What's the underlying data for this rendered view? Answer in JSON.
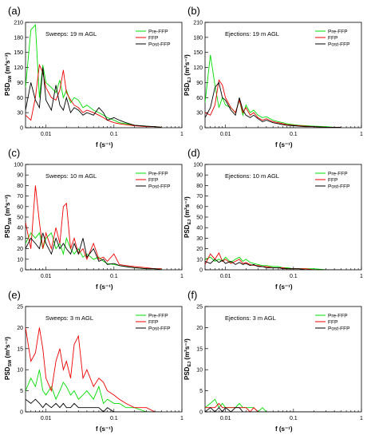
{
  "figure": {
    "panel_letters": [
      "(a)",
      "(b)",
      "(c)",
      "(d)",
      "(e)",
      "(f)"
    ],
    "x_ticks": [
      "0.01",
      "0.1",
      "1"
    ],
    "xlabel": "f (s⁻¹)",
    "colors": {
      "Pre-FFP": "#00dd00",
      "FFP": "#ee0000",
      "Post-FFP": "#000000"
    }
  },
  "chart_data": [
    {
      "type": "line",
      "panel": "(a)",
      "title": "Sweeps: 19 m AGL",
      "ylabel": "PSD",
      "ylabel_sub": "SW",
      "ylabel_unit": " (m²s⁻³)",
      "xlabel": "f (s⁻¹)",
      "x_scale": "log",
      "xlim": [
        0.005,
        1
      ],
      "ylim": [
        0,
        210
      ],
      "y_ticks": [
        0,
        30,
        60,
        90,
        120,
        150,
        180,
        210
      ],
      "x": [
        0.005,
        0.006,
        0.007,
        0.008,
        0.009,
        0.01,
        0.012,
        0.014,
        0.016,
        0.018,
        0.02,
        0.023,
        0.026,
        0.03,
        0.035,
        0.04,
        0.05,
        0.06,
        0.07,
        0.08,
        0.1,
        0.12,
        0.15,
        0.2,
        0.3,
        0.4,
        0.5
      ],
      "series": [
        {
          "name": "Pre-FFP",
          "values": [
            80,
            195,
            205,
            60,
            125,
            90,
            80,
            70,
            95,
            60,
            75,
            50,
            60,
            55,
            40,
            45,
            35,
            30,
            25,
            20,
            15,
            10,
            8,
            5,
            3,
            2,
            1
          ]
        },
        {
          "name": "FFP",
          "values": [
            25,
            15,
            60,
            125,
            110,
            80,
            60,
            55,
            75,
            115,
            70,
            55,
            45,
            40,
            30,
            35,
            30,
            25,
            20,
            15,
            10,
            8,
            6,
            4,
            2,
            2,
            1
          ]
        },
        {
          "name": "Post-FFP",
          "values": [
            35,
            90,
            55,
            40,
            120,
            55,
            35,
            85,
            45,
            35,
            60,
            30,
            40,
            35,
            25,
            30,
            25,
            40,
            30,
            15,
            20,
            15,
            10,
            5,
            3,
            2,
            1
          ]
        }
      ],
      "legend": "top-right",
      "grid": false
    },
    {
      "type": "line",
      "panel": "(b)",
      "title": "Ejections: 19 m AGL",
      "ylabel": "PSD",
      "ylabel_sub": "EJ",
      "ylabel_unit": " (m²s⁻³)",
      "xlabel": "f (s⁻¹)",
      "x_scale": "log",
      "xlim": [
        0.005,
        1
      ],
      "ylim": [
        0,
        210
      ],
      "y_ticks": [
        0,
        30,
        60,
        90,
        120,
        150,
        180,
        210
      ],
      "x": [
        0.005,
        0.006,
        0.007,
        0.008,
        0.009,
        0.01,
        0.012,
        0.014,
        0.016,
        0.018,
        0.02,
        0.023,
        0.026,
        0.03,
        0.035,
        0.04,
        0.05,
        0.06,
        0.07,
        0.08,
        0.1,
        0.12,
        0.15,
        0.2,
        0.3,
        0.4,
        0.5
      ],
      "series": [
        {
          "name": "Pre-FFP",
          "values": [
            50,
            145,
            85,
            40,
            60,
            45,
            40,
            30,
            55,
            25,
            45,
            30,
            35,
            25,
            20,
            22,
            15,
            12,
            10,
            8,
            6,
            5,
            4,
            3,
            2,
            1,
            1
          ]
        },
        {
          "name": "FFP",
          "values": [
            30,
            25,
            45,
            95,
            85,
            60,
            40,
            30,
            55,
            30,
            40,
            25,
            30,
            20,
            15,
            18,
            12,
            10,
            8,
            6,
            5,
            4,
            3,
            2,
            1,
            1,
            1
          ]
        },
        {
          "name": "Post-FFP",
          "values": [
            20,
            40,
            80,
            90,
            60,
            55,
            35,
            25,
            60,
            35,
            25,
            20,
            25,
            18,
            12,
            15,
            10,
            8,
            6,
            5,
            4,
            3,
            2,
            2,
            1,
            1,
            1
          ]
        }
      ],
      "legend": "top-right",
      "grid": false
    },
    {
      "type": "line",
      "panel": "(c)",
      "title": "Sweeps: 10 m AGL",
      "ylabel": "PSD",
      "ylabel_sub": "SW",
      "ylabel_unit": " (m²s⁻³)",
      "xlabel": "f (s⁻¹)",
      "x_scale": "log",
      "xlim": [
        0.005,
        1
      ],
      "ylim": [
        0,
        100
      ],
      "y_ticks": [
        0,
        10,
        20,
        30,
        40,
        50,
        60,
        70,
        80,
        90,
        100
      ],
      "x": [
        0.005,
        0.006,
        0.007,
        0.008,
        0.009,
        0.01,
        0.012,
        0.014,
        0.016,
        0.018,
        0.02,
        0.023,
        0.026,
        0.03,
        0.035,
        0.04,
        0.05,
        0.06,
        0.07,
        0.08,
        0.1,
        0.12,
        0.15,
        0.2,
        0.3,
        0.4,
        0.5
      ],
      "series": [
        {
          "name": "Pre-FFP",
          "values": [
            25,
            35,
            30,
            35,
            20,
            30,
            35,
            20,
            25,
            15,
            30,
            20,
            15,
            20,
            12,
            15,
            10,
            12,
            8,
            6,
            5,
            4,
            3,
            2,
            1,
            1,
            1
          ]
        },
        {
          "name": "FFP",
          "values": [
            45,
            20,
            80,
            45,
            20,
            35,
            20,
            40,
            25,
            60,
            63,
            20,
            30,
            15,
            20,
            10,
            25,
            10,
            12,
            8,
            15,
            5,
            4,
            3,
            2,
            1,
            1
          ]
        },
        {
          "name": "Post-FFP",
          "values": [
            20,
            30,
            25,
            20,
            35,
            25,
            15,
            30,
            20,
            25,
            20,
            15,
            25,
            15,
            30,
            12,
            20,
            8,
            10,
            5,
            6,
            4,
            3,
            2,
            1,
            1,
            0
          ]
        }
      ],
      "legend": "top-right",
      "grid": false
    },
    {
      "type": "line",
      "panel": "(d)",
      "title": "Ejections: 10 m AGL",
      "ylabel": "PSD",
      "ylabel_sub": "EJ",
      "ylabel_unit": " (m²s⁻³)",
      "xlabel": "f (s⁻¹)",
      "x_scale": "log",
      "xlim": [
        0.005,
        1
      ],
      "ylim": [
        0,
        100
      ],
      "y_ticks": [
        0,
        10,
        20,
        30,
        40,
        50,
        60,
        70,
        80,
        90,
        100
      ],
      "x": [
        0.005,
        0.006,
        0.007,
        0.008,
        0.009,
        0.01,
        0.012,
        0.014,
        0.016,
        0.018,
        0.02,
        0.023,
        0.026,
        0.03,
        0.035,
        0.04,
        0.05,
        0.06,
        0.07,
        0.08,
        0.1,
        0.12,
        0.15,
        0.2,
        0.3,
        0.4,
        0.5
      ],
      "series": [
        {
          "name": "Pre-FFP",
          "values": [
            10,
            12,
            8,
            10,
            8,
            12,
            7,
            10,
            12,
            8,
            10,
            7,
            6,
            5,
            4,
            4,
            3,
            3,
            2,
            2,
            1,
            1,
            1,
            1,
            0,
            0,
            0
          ]
        },
        {
          "name": "FFP",
          "values": [
            5,
            15,
            10,
            16,
            8,
            10,
            6,
            8,
            10,
            6,
            7,
            5,
            4,
            4,
            3,
            3,
            2,
            2,
            2,
            1,
            1,
            1,
            1,
            0,
            0,
            0,
            0
          ]
        },
        {
          "name": "Post-FFP",
          "values": [
            8,
            6,
            10,
            7,
            9,
            6,
            8,
            5,
            7,
            5,
            6,
            4,
            5,
            3,
            3,
            2,
            2,
            2,
            1,
            1,
            1,
            1,
            0,
            0,
            0,
            0,
            0
          ]
        }
      ],
      "legend": "top-right",
      "grid": false
    },
    {
      "type": "line",
      "panel": "(e)",
      "title": "Sweeps: 3 m AGL",
      "ylabel": "PSD",
      "ylabel_sub": "SW",
      "ylabel_unit": " (m²s⁻³)",
      "xlabel": "f (s⁻¹)",
      "x_scale": "log",
      "xlim": [
        0.005,
        1
      ],
      "ylim": [
        0,
        25
      ],
      "y_ticks": [
        0,
        5,
        10,
        15,
        20,
        25
      ],
      "x": [
        0.005,
        0.006,
        0.007,
        0.008,
        0.009,
        0.01,
        0.012,
        0.014,
        0.016,
        0.018,
        0.02,
        0.023,
        0.026,
        0.03,
        0.035,
        0.04,
        0.05,
        0.06,
        0.07,
        0.08,
        0.1,
        0.12,
        0.15,
        0.2,
        0.3,
        0.4,
        0.5
      ],
      "series": [
        {
          "name": "Pre-FFP",
          "values": [
            5,
            8,
            6,
            10,
            5,
            4,
            6,
            3,
            5,
            7,
            6,
            4,
            5,
            3,
            4,
            5,
            3,
            6,
            2,
            3,
            2,
            2,
            1,
            1,
            0,
            0,
            0
          ]
        },
        {
          "name": "FFP",
          "values": [
            20,
            12,
            14,
            20,
            15,
            8,
            5,
            12,
            15,
            10,
            12,
            8,
            16,
            18,
            8,
            10,
            6,
            8,
            7,
            5,
            4,
            3,
            2,
            1,
            1,
            0,
            0
          ]
        },
        {
          "name": "Post-FFP",
          "values": [
            3,
            2,
            3,
            2,
            1,
            2,
            1,
            2,
            1,
            2,
            1,
            1,
            2,
            1,
            1,
            1,
            1,
            1,
            0,
            1,
            0,
            0,
            0,
            0,
            0,
            0,
            0
          ]
        }
      ],
      "legend": "top-right",
      "grid": false
    },
    {
      "type": "line",
      "panel": "(f)",
      "title": "Ejections: 3 m AGL",
      "ylabel": "PSD",
      "ylabel_sub": "EJ",
      "ylabel_unit": " (m²s⁻³)",
      "xlabel": "f (s⁻¹)",
      "x_scale": "log",
      "xlim": [
        0.005,
        1
      ],
      "ylim": [
        0,
        25
      ],
      "y_ticks": [
        0,
        5,
        10,
        15,
        20,
        25
      ],
      "x": [
        0.005,
        0.006,
        0.007,
        0.008,
        0.009,
        0.01,
        0.012,
        0.014,
        0.016,
        0.018,
        0.02,
        0.023,
        0.026,
        0.03,
        0.035,
        0.04,
        0.05,
        0.06,
        0.07,
        0.08,
        0.1,
        0.12,
        0.15,
        0.2,
        0.3,
        0.4,
        0.5
      ],
      "series": [
        {
          "name": "Pre-FFP",
          "values": [
            1,
            2,
            3,
            1,
            2,
            1,
            1,
            1,
            2,
            1,
            1,
            1,
            1,
            0,
            1,
            0,
            0,
            0,
            0,
            0,
            0,
            0,
            0,
            0,
            0,
            0,
            0
          ]
        },
        {
          "name": "FFP",
          "values": [
            1,
            1,
            1,
            2,
            1,
            1,
            1,
            1,
            1,
            1,
            1,
            0,
            1,
            0,
            0,
            0,
            0,
            0,
            0,
            0,
            0,
            0,
            0,
            0,
            0,
            0,
            0
          ]
        },
        {
          "name": "Post-FFP",
          "values": [
            0,
            1,
            0,
            1,
            0,
            1,
            0,
            1,
            1,
            0,
            0,
            0,
            0,
            0,
            0,
            0,
            0,
            0,
            0,
            0,
            0,
            0,
            0,
            0,
            0,
            0,
            0
          ]
        }
      ],
      "legend": "top-right",
      "grid": false
    }
  ]
}
